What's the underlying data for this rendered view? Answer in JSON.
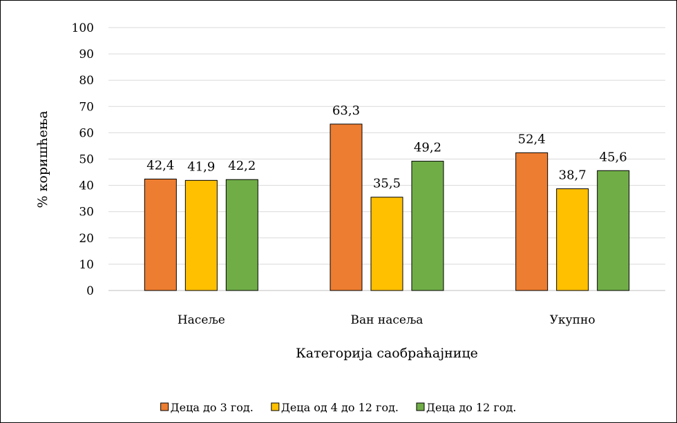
{
  "chart_data": {
    "type": "bar",
    "categories": [
      "Насеље",
      "Ван насеља",
      "Укупно"
    ],
    "series": [
      {
        "name": "Деца до 3 год.",
        "values": [
          42.4,
          63.3,
          52.4
        ],
        "labels": [
          "42,4",
          "63,3",
          "52,4"
        ],
        "color": "#ED7D31"
      },
      {
        "name": "Деца од 4 до 12 год.",
        "values": [
          41.9,
          35.5,
          38.7
        ],
        "labels": [
          "41,9",
          "35,5",
          "38,7"
        ],
        "color": "#FFC000"
      },
      {
        "name": "Деца до 12 год.",
        "values": [
          42.2,
          49.2,
          45.6
        ],
        "labels": [
          "42,2",
          "49,2",
          "45,6"
        ],
        "color": "#70AD47"
      }
    ],
    "xlabel": "Категорија саобраћајнице",
    "ylabel": "% коришћења",
    "ylim": [
      0,
      100
    ],
    "yticks": [
      0,
      10,
      20,
      30,
      40,
      50,
      60,
      70,
      80,
      90,
      100
    ],
    "grid": true,
    "legend_position": "bottom"
  }
}
